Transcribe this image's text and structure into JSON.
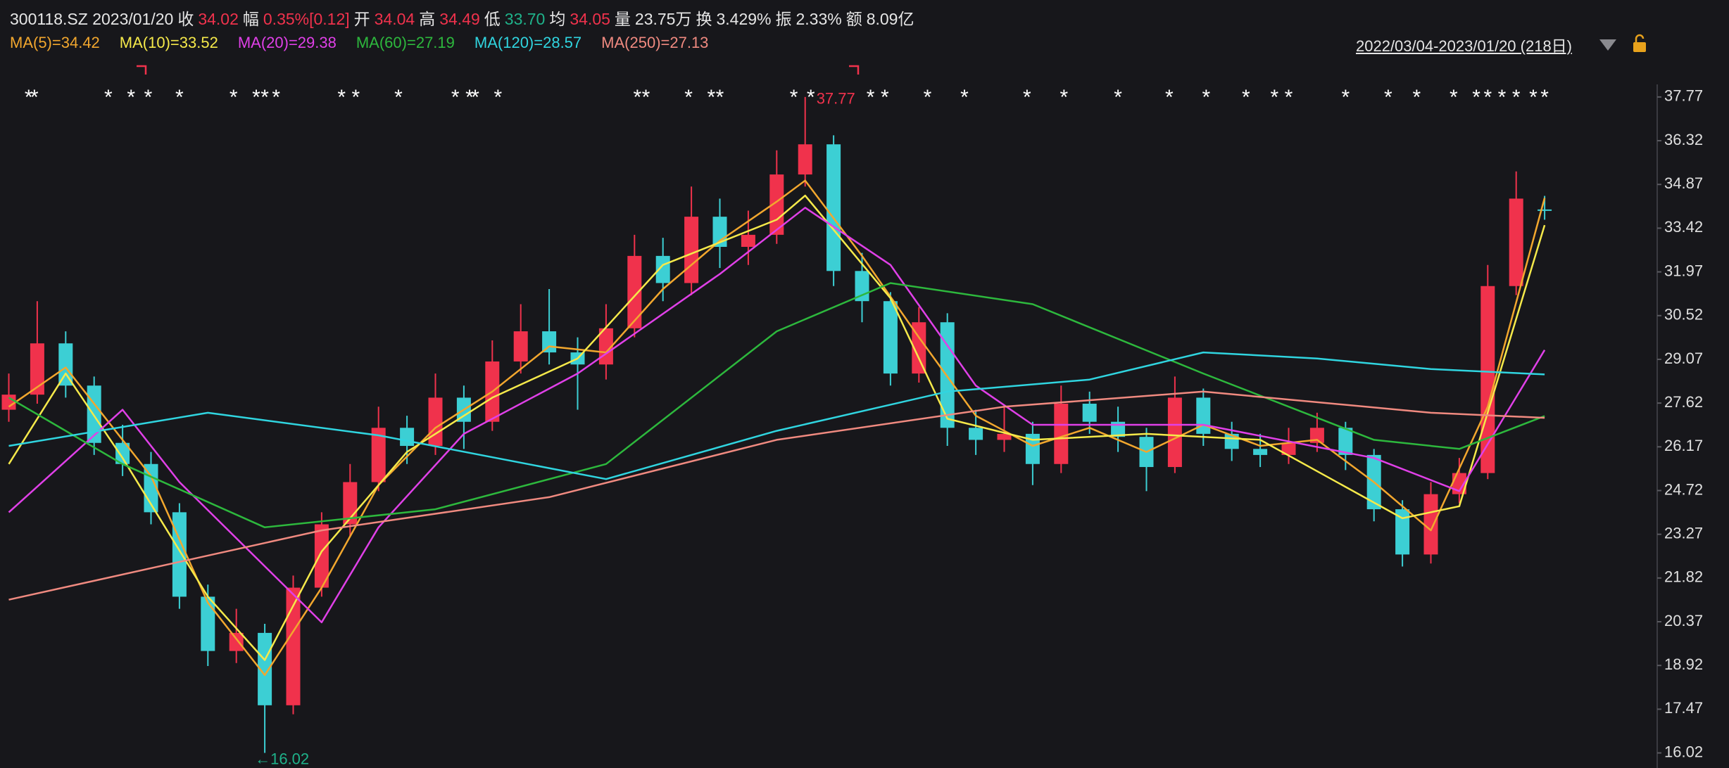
{
  "header": {
    "symbol_date": "300118.SZ 2023/01/20",
    "info": [
      {
        "label": "收",
        "value": "34.02",
        "color": "#f0324c"
      },
      {
        "label": "幅",
        "value": "0.35%[0.12]",
        "color": "#f0324c"
      },
      {
        "label": "开",
        "value": "34.04",
        "color": "#f0324c"
      },
      {
        "label": "高",
        "value": "34.49",
        "color": "#f0324c"
      },
      {
        "label": "低",
        "value": "33.70",
        "color": "#1fb28a"
      },
      {
        "label": "均",
        "value": "34.05",
        "color": "#f0324c"
      },
      {
        "label": "量",
        "value": "23.75万",
        "color": "#e6e6e6"
      },
      {
        "label": "换",
        "value": "3.429%",
        "color": "#e6e6e6"
      },
      {
        "label": "振",
        "value": "2.33%",
        "color": "#e6e6e6"
      },
      {
        "label": "额",
        "value": "8.09亿",
        "color": "#e6e6e6"
      }
    ],
    "range": "2022/03/04-2023/01/20 (218日)"
  },
  "chart_data": {
    "type": "candlestick",
    "up_color": "#f0324c",
    "down_color": "#3ccfd4",
    "open": [
      27.4,
      27.9,
      29.6,
      28.2,
      26.3,
      25.6,
      24.0,
      21.2,
      19.4,
      20.0,
      17.6,
      21.5,
      23.6,
      25.0,
      26.8,
      26.2,
      27.8,
      27.0,
      29.0,
      30.0,
      29.3,
      28.9,
      30.1,
      32.5,
      31.6,
      33.8,
      32.8,
      33.2,
      35.2,
      36.2,
      32.0,
      31.0,
      28.6,
      30.3,
      26.8,
      26.4,
      26.6,
      25.6,
      27.6,
      27.0,
      26.5,
      25.5,
      27.8,
      26.6,
      26.1,
      25.9,
      26.3,
      26.8,
      25.9,
      24.1,
      22.6,
      24.6,
      25.3,
      31.5,
      34.04
    ],
    "high": [
      28.6,
      31.0,
      30.0,
      28.5,
      26.9,
      26.0,
      24.3,
      21.6,
      20.8,
      20.3,
      21.9,
      24.0,
      25.6,
      27.5,
      27.2,
      28.6,
      28.2,
      29.7,
      30.9,
      31.4,
      29.8,
      30.9,
      33.2,
      33.1,
      34.8,
      34.4,
      34.0,
      36.0,
      37.77,
      36.5,
      32.6,
      31.3,
      30.8,
      30.6,
      27.4,
      27.5,
      27.0,
      28.2,
      28.0,
      27.5,
      26.8,
      28.5,
      28.1,
      27.0,
      26.6,
      26.8,
      27.3,
      27.0,
      26.1,
      24.4,
      25.0,
      25.8,
      32.2,
      35.3,
      34.49
    ],
    "low": [
      27.0,
      27.6,
      27.8,
      25.9,
      25.2,
      23.6,
      20.8,
      18.9,
      19.0,
      16.02,
      17.3,
      21.2,
      23.2,
      24.7,
      25.6,
      25.9,
      26.1,
      26.7,
      28.6,
      28.9,
      27.4,
      28.4,
      29.8,
      31.0,
      31.2,
      32.1,
      32.2,
      32.9,
      34.8,
      31.5,
      30.3,
      28.2,
      28.3,
      26.2,
      25.9,
      26.0,
      24.9,
      25.3,
      26.6,
      26.0,
      24.7,
      25.3,
      26.2,
      25.7,
      25.5,
      25.6,
      26.0,
      25.4,
      23.7,
      22.2,
      22.3,
      24.3,
      25.1,
      31.2,
      33.7
    ],
    "close": [
      27.9,
      29.6,
      28.2,
      26.3,
      25.6,
      24.0,
      21.2,
      19.4,
      20.0,
      17.6,
      21.5,
      23.6,
      25.0,
      26.8,
      26.2,
      27.8,
      27.0,
      29.0,
      30.0,
      29.3,
      28.9,
      30.1,
      32.5,
      31.6,
      33.8,
      32.8,
      33.2,
      35.2,
      36.2,
      32.0,
      31.0,
      28.6,
      30.3,
      26.8,
      26.4,
      26.6,
      25.6,
      27.6,
      27.0,
      26.5,
      25.5,
      27.8,
      26.6,
      26.1,
      25.9,
      26.3,
      26.8,
      25.9,
      24.1,
      22.6,
      24.6,
      25.3,
      31.5,
      34.4,
      34.02
    ],
    "series": [
      {
        "name": "MA(5)=34.42",
        "color": "#f2a72e",
        "x": [
          0,
          2,
          5,
          7,
          9,
          11,
          13,
          15,
          17,
          19,
          21,
          23,
          25,
          27,
          28,
          30,
          32,
          34,
          36,
          38,
          40,
          42,
          44,
          46,
          48,
          50,
          52,
          54
        ],
        "values": [
          27.5,
          28.8,
          25.2,
          21.0,
          18.6,
          21.5,
          24.9,
          26.8,
          28.0,
          29.5,
          29.3,
          31.4,
          33.0,
          34.3,
          35.0,
          32.5,
          29.8,
          27.2,
          26.2,
          26.8,
          26.0,
          26.9,
          26.2,
          26.4,
          25.0,
          23.4,
          27.5,
          34.42
        ]
      },
      {
        "name": "MA(10)=33.52",
        "color": "#f5e94a",
        "x": [
          0,
          2,
          4,
          7,
          9,
          11,
          14,
          17,
          20,
          23,
          27,
          28,
          31,
          33,
          36,
          40,
          44,
          49,
          51,
          54
        ],
        "values": [
          25.6,
          28.6,
          25.8,
          21.2,
          19.1,
          22.7,
          26.0,
          27.8,
          29.1,
          32.2,
          33.7,
          34.5,
          31.1,
          27.1,
          26.4,
          26.6,
          26.4,
          23.8,
          24.2,
          33.52
        ]
      },
      {
        "name": "MA(20)=29.38",
        "color": "#e040e8",
        "x": [
          0,
          4,
          6,
          11,
          13,
          16,
          20,
          25,
          28,
          31,
          34,
          36,
          42,
          48,
          51,
          54
        ],
        "values": [
          24.0,
          27.4,
          25.0,
          20.35,
          23.5,
          26.6,
          28.6,
          31.9,
          34.1,
          32.2,
          28.2,
          26.9,
          26.9,
          25.8,
          24.7,
          29.38
        ]
      },
      {
        "name": "MA(60)=27.19",
        "color": "#2db83d",
        "x": [
          0,
          4,
          9,
          15,
          21,
          27,
          31,
          36,
          42,
          48,
          51,
          54
        ],
        "values": [
          27.8,
          25.6,
          23.5,
          24.1,
          25.6,
          30.0,
          31.6,
          30.9,
          28.6,
          26.4,
          26.1,
          27.19
        ]
      },
      {
        "name": "MA(120)=28.57",
        "color": "#30d5e0",
        "x": [
          0,
          7,
          13,
          21,
          27,
          33,
          38,
          42,
          46,
          50,
          54
        ],
        "values": [
          26.2,
          27.3,
          26.55,
          25.1,
          26.7,
          28.0,
          28.4,
          29.3,
          29.1,
          28.75,
          28.57
        ]
      },
      {
        "name": "MA(250)=27.13",
        "color": "#f08a80",
        "x": [
          0,
          11,
          19,
          27,
          35,
          42,
          50,
          54
        ],
        "values": [
          21.1,
          23.4,
          24.5,
          26.4,
          27.5,
          28.0,
          27.3,
          27.13
        ]
      }
    ],
    "star_marker": "*",
    "star_x": [
      0.7,
      0.9,
      3.5,
      4.3,
      4.9,
      6.0,
      7.9,
      8.7,
      9.0,
      9.4,
      11.7,
      12.2,
      13.7,
      15.7,
      16.2,
      16.4,
      17.2,
      22.1,
      22.4,
      23.9,
      24.7,
      25.0,
      27.6,
      28.2,
      30.3,
      30.8,
      32.3,
      33.6,
      35.8,
      37.1,
      39.0,
      40.8,
      42.1,
      43.5,
      44.5,
      45.0,
      47.0,
      48.5,
      49.5,
      50.8,
      51.6,
      52.0,
      52.5,
      53.0,
      53.6,
      54.0
    ],
    "low_label": "←16.02",
    "ylim": [
      15.52,
      38.98
    ],
    "yticks": [
      37.77,
      36.32,
      34.87,
      33.42,
      31.97,
      30.52,
      29.07,
      27.62,
      26.17,
      24.72,
      23.27,
      21.82,
      20.37,
      18.92,
      17.47,
      16.02
    ],
    "grid": false
  }
}
